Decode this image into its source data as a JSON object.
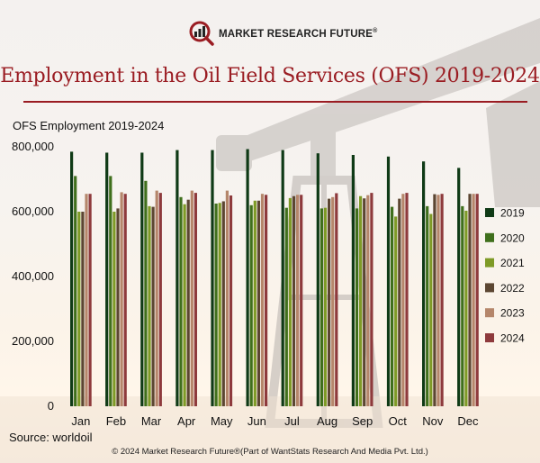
{
  "brand": {
    "name": "MARKET RESEARCH FUTURE",
    "reg": "®"
  },
  "chart_data": {
    "type": "bar",
    "title": "Employment in the Oil Field Services (OFS) 2019-2024",
    "ylabel": "OFS Employment 2019-2024",
    "xlabel": "",
    "ylim": [
      0,
      800000
    ],
    "yticks": [
      0,
      200000,
      400000,
      600000,
      800000
    ],
    "ytick_labels": [
      "0",
      "200,000",
      "400,000",
      "600,000",
      "800,000"
    ],
    "categories": [
      "Jan",
      "Feb",
      "Mar",
      "Apr",
      "May",
      "Jun",
      "Jul",
      "Aug",
      "Sep",
      "Oct",
      "Nov",
      "Dec"
    ],
    "legend_position": "right",
    "series": [
      {
        "name": "2019",
        "color": "#0f3a16",
        "values": [
          785000,
          782000,
          782000,
          790000,
          790000,
          793000,
          790000,
          780000,
          775000,
          770000,
          755000,
          735000
        ]
      },
      {
        "name": "2020",
        "color": "#3f6f1c",
        "values": [
          710000,
          710000,
          695000,
          645000,
          625000,
          620000,
          612000,
          610000,
          610000,
          615000,
          617000,
          617000
        ]
      },
      {
        "name": "2021",
        "color": "#7e9a26",
        "values": [
          600000,
          600000,
          617000,
          623000,
          627000,
          634000,
          642000,
          612000,
          648000,
          585000,
          593000,
          603000
        ]
      },
      {
        "name": "2022",
        "color": "#5c4632",
        "values": [
          600000,
          610000,
          615000,
          637000,
          632000,
          634000,
          648000,
          640000,
          641000,
          640000,
          654000,
          655000
        ]
      },
      {
        "name": "2023",
        "color": "#b5866b",
        "values": [
          655000,
          660000,
          665000,
          665000,
          665000,
          655000,
          652000,
          645000,
          651000,
          655000,
          652000,
          655000
        ]
      },
      {
        "name": "2024",
        "color": "#8e3a3c",
        "values": [
          655000,
          655000,
          658000,
          658000,
          650000,
          652000,
          652000,
          657000,
          658000,
          658000,
          655000,
          655000
        ]
      }
    ]
  },
  "source": "Source: worldoil",
  "footer": "© 2024 Market Research Future®(Part of WantStats Research And Media Pvt. Ltd.)"
}
